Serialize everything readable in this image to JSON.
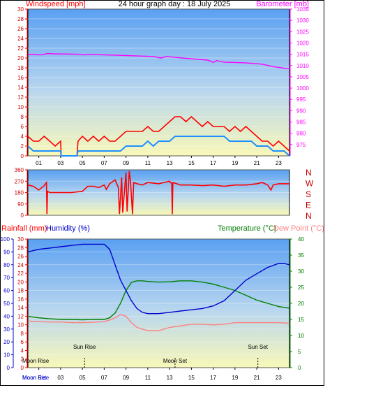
{
  "header": {
    "title": "24 hour graph day : 18 July 2025",
    "left_label": "Windspeed [mph]",
    "right_label": "Barometer [mb]"
  },
  "colors": {
    "red": "#ff0000",
    "magenta": "#ff00ff",
    "blue": "#0000cc",
    "wind_avg": "#1e90ff",
    "green": "#008000",
    "dew": "#ff8080",
    "axis_red": "#cc0000"
  },
  "chart_data": [
    {
      "type": "line",
      "name": "wind-baro",
      "xlabel": "",
      "x_ticks": [
        "01",
        "03",
        "05",
        "07",
        "09",
        "11",
        "13",
        "15",
        "17",
        "19",
        "21",
        "23"
      ],
      "y_left": {
        "label": "Windspeed [mph]",
        "ylim": [
          0,
          30
        ],
        "ticks": [
          0,
          2,
          4,
          6,
          8,
          10,
          12,
          14,
          16,
          18,
          20,
          22,
          24,
          26,
          28,
          30
        ]
      },
      "y_right": {
        "label": "Barometer [mb]",
        "ylim": [
          970,
          1035
        ],
        "ticks": [
          975,
          980,
          985,
          990,
          995,
          1000,
          1005,
          1010,
          1015,
          1020,
          1025,
          1030,
          1035
        ]
      },
      "series": [
        {
          "axis": "right",
          "x": [
            0,
            1.2,
            1.8,
            2.3,
            4.6,
            5.2,
            5.8,
            6.5,
            8.0,
            11.5,
            12.2,
            12.7,
            14.2,
            16.5,
            17.0,
            17.3,
            18.0,
            20.0,
            21.5,
            22.5,
            24
          ],
          "values": [
            1015,
            1014.7,
            1015.3,
            1015.2,
            1015,
            1014.7,
            1015.0,
            1014.8,
            1014.6,
            1014,
            1013.3,
            1014,
            1013.3,
            1012.4,
            1011.4,
            1012.2,
            1011.5,
            1011.2,
            1010.6,
            1009.5,
            1008.5
          ]
        },
        {
          "axis": "left",
          "x": [
            0,
            0.5,
            1,
            1.5,
            2,
            2.5,
            3.0,
            3.05,
            4.5,
            4.6,
            5,
            5.5,
            6,
            6.5,
            7,
            7.5,
            8,
            8.5,
            9,
            9.5,
            10,
            10.5,
            11,
            11.5,
            12,
            12.5,
            13,
            13.5,
            14,
            14.5,
            15,
            15.5,
            16,
            16.5,
            17,
            17.5,
            18,
            18.5,
            19,
            19.5,
            20,
            20.5,
            21,
            21.5,
            22,
            22.5,
            23,
            23.5,
            24
          ],
          "values": [
            4,
            3,
            3,
            4,
            3,
            2,
            3,
            0,
            0,
            3,
            4,
            3,
            4,
            3,
            4,
            3,
            3,
            4,
            5,
            5,
            5,
            5,
            6,
            5,
            5,
            6,
            7,
            8,
            8,
            7,
            8,
            7,
            6,
            7,
            6,
            6,
            6,
            5,
            6,
            5,
            6,
            5,
            4,
            3,
            3,
            2,
            3,
            2,
            1
          ]
        },
        {
          "axis": "left",
          "x": [
            0,
            0.5,
            1,
            1.5,
            2,
            2.5,
            3.0,
            3.05,
            4.5,
            4.6,
            5,
            5.5,
            6,
            6.5,
            7,
            7.5,
            8,
            8.5,
            9,
            9.5,
            10,
            10.5,
            11,
            11.5,
            12,
            12.5,
            13,
            13.5,
            14,
            14.5,
            15,
            15.5,
            16,
            16.5,
            17,
            17.5,
            18,
            18.5,
            19,
            19.5,
            20,
            20.5,
            21,
            21.5,
            22,
            22.5,
            23,
            23.5,
            24
          ],
          "values": [
            2,
            1,
            1,
            1,
            1,
            1,
            1,
            0,
            0,
            1,
            1,
            1,
            1,
            1,
            1,
            1,
            1,
            1,
            2,
            2,
            2,
            2,
            3,
            2,
            3,
            3,
            3,
            4,
            4,
            4,
            4,
            4,
            4,
            4,
            4,
            4,
            4,
            3,
            3,
            3,
            3,
            3,
            2,
            2,
            2,
            1,
            1,
            1,
            0
          ]
        }
      ]
    },
    {
      "type": "line",
      "name": "wind-direction",
      "y_left": {
        "ticks": [
          0,
          90,
          180,
          270,
          360
        ],
        "ylim": [
          0,
          360
        ]
      },
      "y_right_labels": [
        "N",
        "W",
        "S",
        "E",
        "N"
      ],
      "series": [
        {
          "x": [
            0,
            0.5,
            1,
            1.5,
            1.7,
            1.75,
            1.8,
            2,
            3,
            4,
            5,
            5.5,
            6,
            6.5,
            7,
            7.2,
            7.5,
            8,
            8.3,
            8.4,
            8.6,
            8.7,
            9,
            9.1,
            9.3,
            9.4,
            9.6,
            9.7,
            10,
            10.5,
            11,
            12,
            12.5,
            13,
            13.2,
            13.25,
            13.3,
            14,
            15,
            16,
            17,
            18,
            19,
            20,
            21,
            21.5,
            22,
            22.3,
            22.5,
            23,
            24
          ],
          "values": [
            240,
            230,
            200,
            235,
            260,
            10,
            190,
            180,
            180,
            180,
            190,
            230,
            230,
            220,
            240,
            205,
            250,
            280,
            220,
            10,
            300,
            20,
            340,
            30,
            350,
            280,
            10,
            260,
            250,
            240,
            260,
            250,
            260,
            270,
            250,
            10,
            260,
            240,
            240,
            235,
            240,
            230,
            240,
            240,
            250,
            260,
            240,
            200,
            240,
            250,
            250
          ]
        }
      ]
    },
    {
      "type": "line",
      "name": "temp-humidity",
      "headers": {
        "rain_label": "Rainfall (mm)",
        "humidity_label": "Humidity (%)",
        "temp_label": "Temperature (°C)",
        "dew_label": "Dew Point (°C)"
      },
      "y_humidity": {
        "ylim": [
          0,
          100
        ],
        "ticks": [
          0,
          10,
          20,
          30,
          40,
          50,
          60,
          70,
          80,
          90,
          100
        ]
      },
      "y_rain": {
        "ylim": [
          0,
          30
        ],
        "ticks": [
          0,
          2,
          4,
          6,
          8,
          10,
          12,
          14,
          16,
          18,
          20,
          22,
          24,
          26,
          28,
          30
        ]
      },
      "y_temp": {
        "ylim": [
          0,
          40
        ],
        "ticks": [
          0,
          5,
          10,
          15,
          20,
          25,
          30,
          35,
          40
        ]
      },
      "series": [
        {
          "name": "Humidity",
          "x": [
            0,
            1,
            2,
            3,
            4,
            5,
            6,
            7,
            7.5,
            8,
            8.5,
            9,
            9.5,
            10,
            10.5,
            11,
            12,
            13,
            14,
            15,
            16,
            17,
            18,
            19,
            20,
            21,
            22,
            23,
            23.5,
            24
          ],
          "values": [
            90,
            92,
            93,
            94,
            95,
            96,
            96,
            96,
            92,
            80,
            68,
            60,
            52,
            46,
            43,
            42,
            42,
            43,
            44,
            45,
            46,
            48,
            52,
            60,
            68,
            73,
            78,
            81,
            81,
            80
          ]
        },
        {
          "name": "Temperature",
          "x": [
            0,
            1,
            2,
            3,
            4,
            5,
            6,
            7,
            7.5,
            8,
            8.5,
            9,
            9.5,
            10,
            10.5,
            11,
            12,
            13,
            14,
            15,
            16,
            17,
            18,
            19,
            20,
            21,
            22,
            23,
            24
          ],
          "values": [
            16,
            15.5,
            15.2,
            15,
            15,
            14.9,
            15,
            15,
            15.5,
            17,
            20,
            24,
            26.5,
            27,
            27,
            26.8,
            26.6,
            26.7,
            27,
            27,
            26.6,
            26,
            25,
            24,
            22.5,
            21,
            20,
            19,
            18.5
          ]
        },
        {
          "name": "Dew Point",
          "x": [
            0,
            1,
            2,
            3,
            4,
            5,
            6,
            7,
            7.5,
            8,
            8.5,
            9,
            9.5,
            10,
            10.5,
            11,
            12,
            13,
            14,
            15,
            16,
            17,
            18,
            19,
            20,
            21,
            22,
            23,
            24
          ],
          "values": [
            14.5,
            14.3,
            14.2,
            14.2,
            14,
            14,
            14.1,
            14.3,
            14.8,
            15.5,
            16.5,
            16,
            14,
            12.5,
            12,
            11.5,
            11.5,
            12.5,
            13,
            13.5,
            13.5,
            13.3,
            13.5,
            14,
            14,
            14,
            14,
            14,
            13.8
          ]
        }
      ],
      "events": [
        {
          "label": "Moon Rise",
          "x": 0.1
        },
        {
          "label": "Sun Rise",
          "x": 5.2
        },
        {
          "label": "Moon Set",
          "x": 13.5
        },
        {
          "label": "Sun Set",
          "x": 21.1
        }
      ],
      "bottom_labels": [
        "Moon Rise",
        "Moon Set"
      ]
    }
  ]
}
